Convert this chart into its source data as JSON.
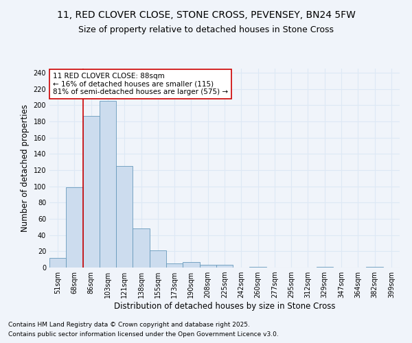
{
  "title1": "11, RED CLOVER CLOSE, STONE CROSS, PEVENSEY, BN24 5FW",
  "title2": "Size of property relative to detached houses in Stone Cross",
  "xlabel": "Distribution of detached houses by size in Stone Cross",
  "ylabel": "Number of detached properties",
  "bar_labels": [
    "51sqm",
    "68sqm",
    "86sqm",
    "103sqm",
    "121sqm",
    "138sqm",
    "155sqm",
    "173sqm",
    "190sqm",
    "208sqm",
    "225sqm",
    "242sqm",
    "260sqm",
    "277sqm",
    "295sqm",
    "312sqm",
    "329sqm",
    "347sqm",
    "364sqm",
    "382sqm",
    "399sqm"
  ],
  "bar_heights": [
    12,
    99,
    187,
    205,
    125,
    48,
    21,
    5,
    7,
    3,
    3,
    0,
    1,
    0,
    0,
    0,
    1,
    0,
    0,
    1,
    0
  ],
  "bar_color": "#ccdcee",
  "bar_edge_color": "#6699bb",
  "background_color": "#f0f4fa",
  "grid_color": "#dde8f5",
  "red_line_x": 2.0,
  "annotation_text": "11 RED CLOVER CLOSE: 88sqm\n← 16% of detached houses are smaller (115)\n81% of semi-detached houses are larger (575) →",
  "annotation_box_color": "#ffffff",
  "annotation_text_color": "#000000",
  "red_line_color": "#cc0000",
  "ylim": [
    0,
    245
  ],
  "yticks": [
    0,
    20,
    40,
    60,
    80,
    100,
    120,
    140,
    160,
    180,
    200,
    220,
    240
  ],
  "footnote1": "Contains HM Land Registry data © Crown copyright and database right 2025.",
  "footnote2": "Contains public sector information licensed under the Open Government Licence v3.0.",
  "title_fontsize": 10,
  "subtitle_fontsize": 9,
  "ylabel_fontsize": 8.5,
  "xlabel_fontsize": 8.5,
  "tick_fontsize": 7,
  "footnote_fontsize": 6.5,
  "annot_fontsize": 7.5
}
